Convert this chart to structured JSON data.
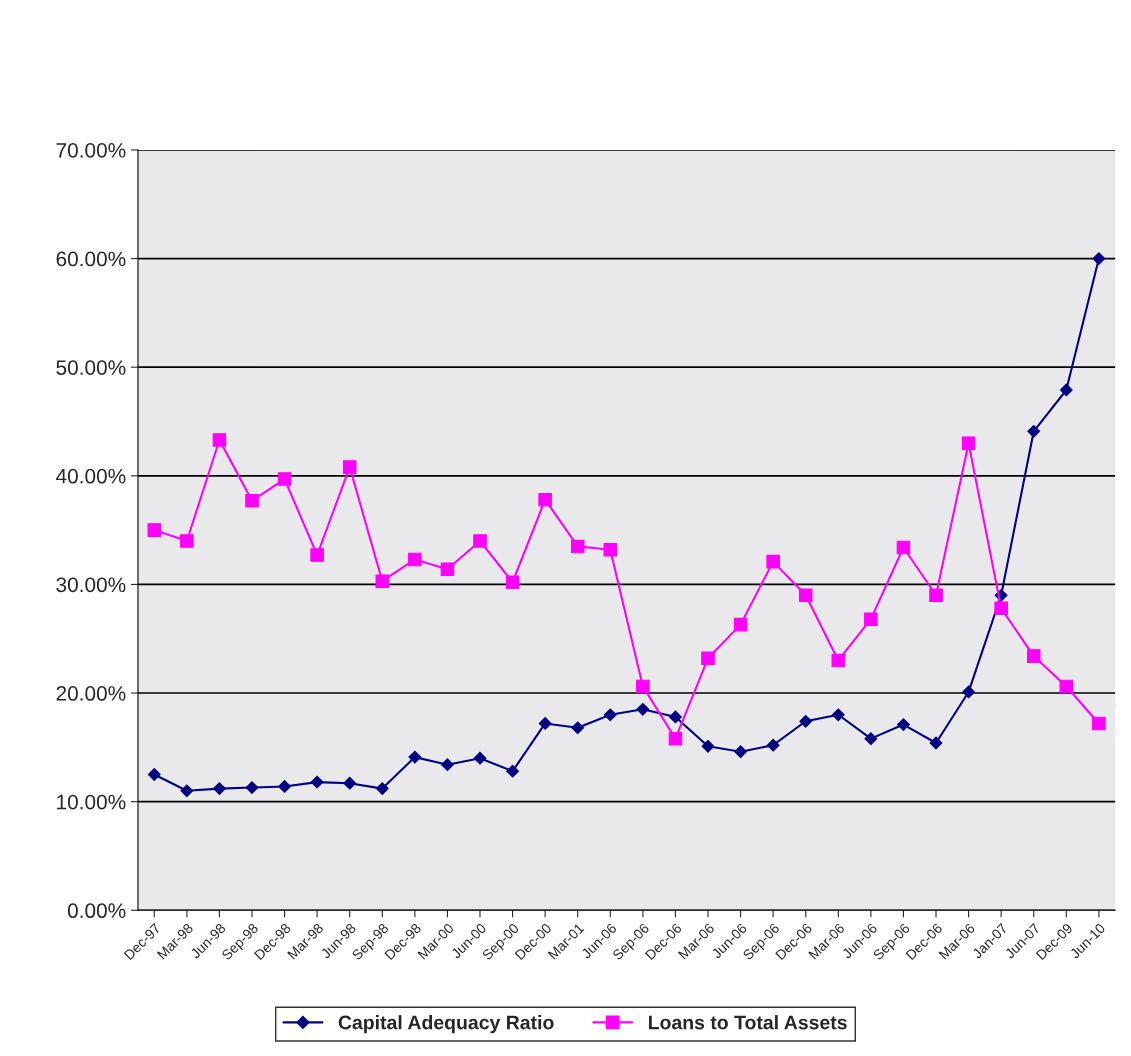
{
  "chart_data": {
    "type": "line",
    "categories": [
      "Dec-97",
      "Mar-98",
      "Jun-98",
      "Sep-98",
      "Dec-98",
      "Mar-98",
      "Jun-98",
      "Sep-98",
      "Dec-98",
      "Mar-00",
      "Jun-00",
      "Sep-00",
      "Dec-00",
      "Mar-01",
      "Jun-06",
      "Sep-06",
      "Dec-06",
      "Mar-06",
      "Jun-06",
      "Sep-06",
      "Dec-06",
      "Mar-06",
      "Jun-06",
      "Sep-06",
      "Dec-06",
      "Mar-06",
      "Jan-07",
      "Jun-07",
      "Dec-09",
      "Jun-10"
    ],
    "series": [
      {
        "name": "Capital Adequacy Ratio",
        "color": "#000080",
        "marker": "diamond",
        "values": [
          12.5,
          11,
          11.2,
          11.3,
          11.4,
          11.8,
          11.7,
          11.2,
          14.1,
          13.4,
          14,
          12.8,
          17.2,
          16.8,
          18,
          18.5,
          17.8,
          15.1,
          14.6,
          15.2,
          17.4,
          18,
          15.8,
          17.1,
          15.4,
          20.1,
          29,
          44.1,
          47.9,
          60
        ]
      },
      {
        "name": "Loans to Total Assets",
        "color": "#ff00ff",
        "marker": "square",
        "values": [
          35,
          34,
          43.3,
          37.7,
          39.7,
          32.7,
          40.8,
          30.3,
          32.3,
          31.4,
          34,
          30.2,
          37.8,
          33.5,
          33.2,
          20.6,
          15.8,
          23.2,
          26.3,
          32.1,
          29,
          23,
          26.8,
          33.4,
          29,
          43,
          27.8,
          23.4,
          20.6,
          17.2
        ]
      }
    ],
    "ylim": [
      0,
      70
    ],
    "yticks": [
      {
        "value": 0,
        "label": "0.00%"
      },
      {
        "value": 10,
        "label": "10.00%"
      },
      {
        "value": 20,
        "label": "20.00%"
      },
      {
        "value": 30,
        "label": "30.00%"
      },
      {
        "value": 40,
        "label": "40.00%"
      },
      {
        "value": 50,
        "label": "50.00%"
      },
      {
        "value": 60,
        "label": "60.00%"
      },
      {
        "value": 70,
        "label": "70.00%"
      }
    ],
    "grid": "y",
    "legend": "bottom",
    "line_style": "solid"
  }
}
